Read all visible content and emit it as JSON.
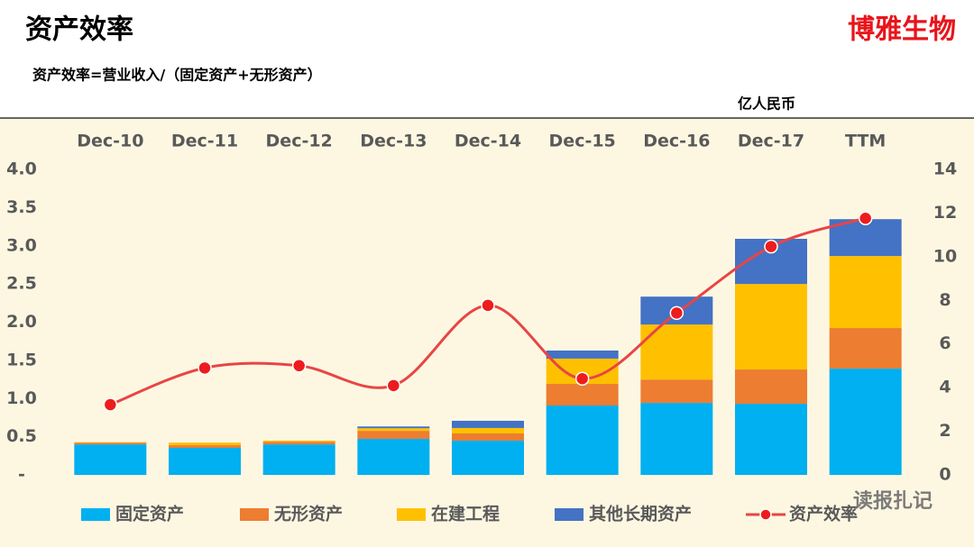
{
  "header": {
    "title": "资产效率",
    "brand": "博雅生物",
    "subtitle": "资产效率=营业收入/（固定资产+无形资产）",
    "unit": "亿人民币"
  },
  "watermark": "读报扎记",
  "chart_data": {
    "type": "stacked-bar-line",
    "categories": [
      "Dec-10",
      "Dec-11",
      "Dec-12",
      "Dec-13",
      "Dec-14",
      "Dec-15",
      "Dec-16",
      "Dec-17",
      "TTM"
    ],
    "series": [
      {
        "name": "固定资产",
        "color": "#00b0f0",
        "axis": "y2",
        "values": [
          1.4,
          1.24,
          1.4,
          1.65,
          1.57,
          3.18,
          3.3,
          3.26,
          4.87
        ]
      },
      {
        "name": "无形资产",
        "color": "#ed7d31",
        "axis": "y2",
        "values": [
          0.08,
          0.12,
          0.12,
          0.37,
          0.33,
          0.99,
          1.07,
          1.57,
          1.86
        ]
      },
      {
        "name": "在建工程",
        "color": "#ffc000",
        "axis": "y2",
        "values": [
          0.02,
          0.12,
          0.05,
          0.12,
          0.25,
          1.16,
          2.52,
          3.92,
          3.3
        ]
      },
      {
        "name": "其他长期资产",
        "color": "#4472c4",
        "axis": "y2",
        "values": [
          0,
          0,
          0,
          0.08,
          0.33,
          0.37,
          1.28,
          2.07,
          1.69
        ]
      },
      {
        "name": "资产效率",
        "color": "#e84545",
        "type": "line",
        "values": [
          0.92,
          1.4,
          1.43,
          1.17,
          2.22,
          1.26,
          2.12,
          2.99,
          3.36
        ]
      }
    ],
    "ylim": [
      0,
      4
    ],
    "yticks": [
      {
        "value": 0,
        "label": "-"
      },
      0.5,
      {
        "value": 1,
        "label": "1.0"
      },
      1.5,
      {
        "value": 2,
        "label": "2.0"
      },
      2.5,
      {
        "value": 3,
        "label": "3.0"
      },
      3.5,
      {
        "value": 4,
        "label": "4.0"
      }
    ],
    "y2lim": [
      0,
      14
    ],
    "y2ticks": [
      0,
      2,
      4,
      6,
      8,
      10,
      12,
      14
    ],
    "legend": "bottom"
  }
}
